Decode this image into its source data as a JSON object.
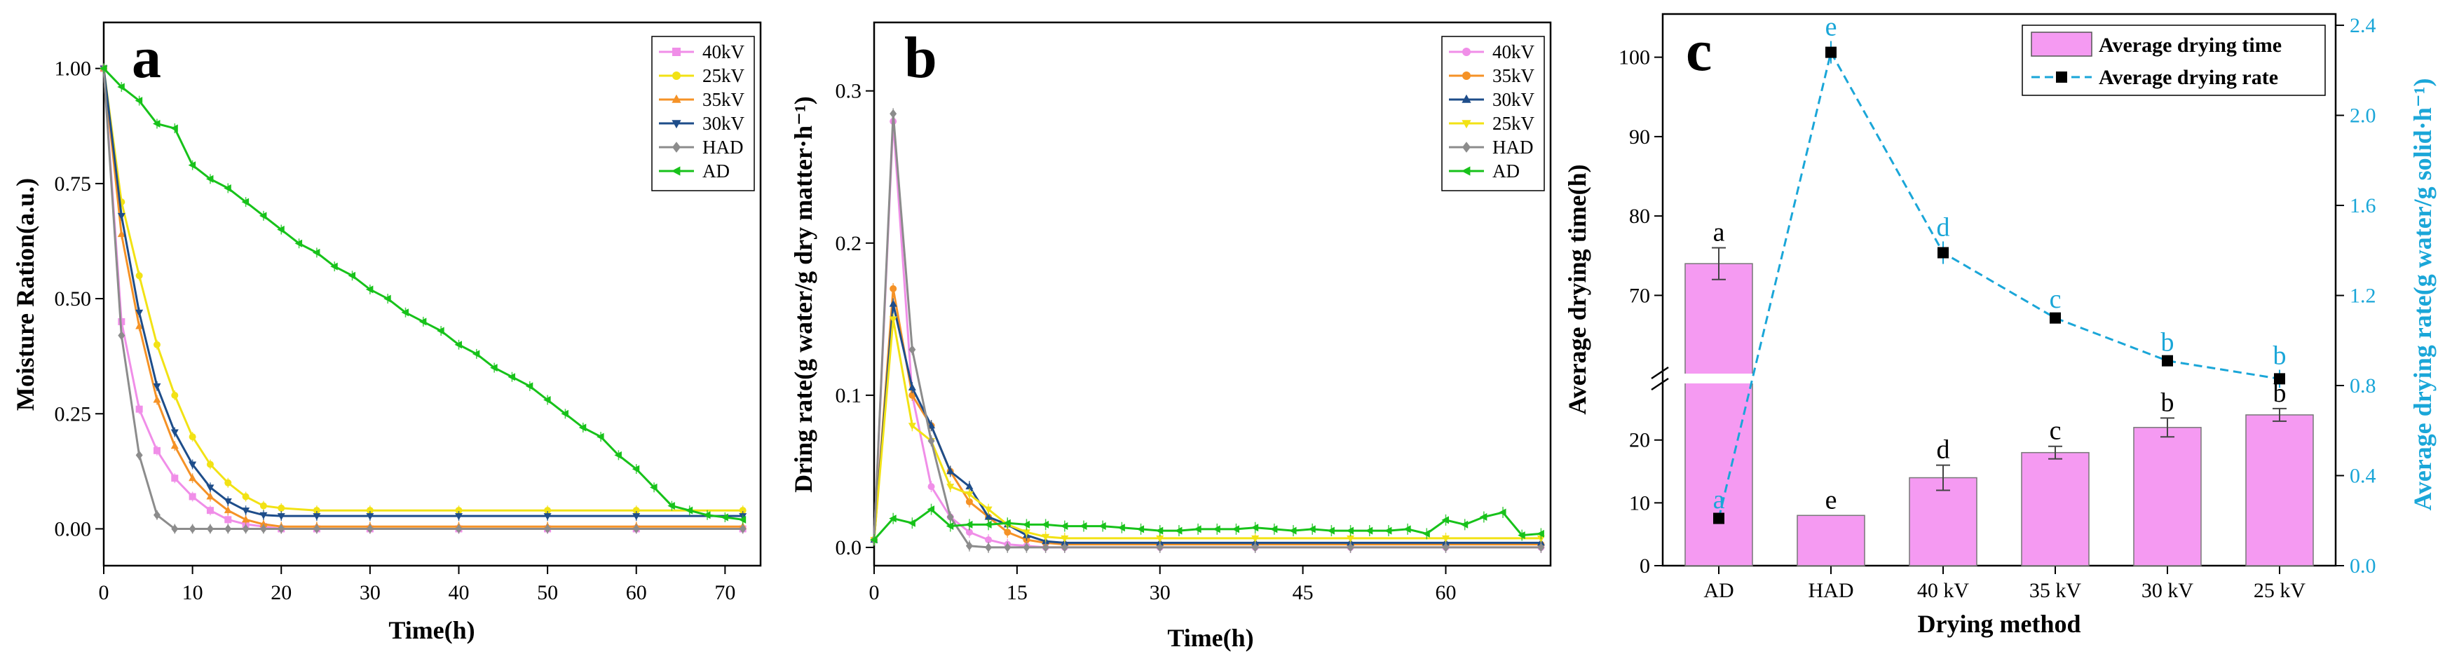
{
  "chart_data": [
    {
      "type": "line",
      "panel": "a",
      "xlabel": "Time(h)",
      "ylabel": "Moisture Ration(a.u.)",
      "xlim": [
        0,
        74
      ],
      "ylim": [
        -0.08,
        1.1
      ],
      "xticks": [
        0,
        10,
        20,
        30,
        40,
        50,
        60,
        70
      ],
      "yticks": [
        0.0,
        0.25,
        0.5,
        0.75,
        1.0
      ],
      "ytick_labels": [
        "0.00",
        "0.25",
        "0.50",
        "0.75",
        "1.00"
      ],
      "legend": [
        "40kV",
        "25kV",
        "35kV",
        "30kV",
        "HAD",
        "AD"
      ],
      "legend_position": "top-right",
      "series": [
        {
          "name": "40kV",
          "color": "#f08ee8",
          "marker": "square",
          "x": [
            0,
            2,
            4,
            6,
            8,
            10,
            12,
            14,
            16,
            18,
            20,
            24,
            30,
            40,
            50,
            60,
            72
          ],
          "y": [
            1.0,
            0.45,
            0.26,
            0.17,
            0.11,
            0.07,
            0.04,
            0.02,
            0.01,
            0.005,
            0.0,
            0.0,
            0.0,
            0.0,
            0.0,
            0.0,
            0.0
          ]
        },
        {
          "name": "25kV",
          "color": "#f2e214",
          "marker": "circle",
          "x": [
            0,
            2,
            4,
            6,
            8,
            10,
            12,
            14,
            16,
            18,
            20,
            24,
            30,
            40,
            50,
            60,
            72
          ],
          "y": [
            1.0,
            0.71,
            0.55,
            0.4,
            0.29,
            0.2,
            0.14,
            0.1,
            0.07,
            0.05,
            0.045,
            0.04,
            0.04,
            0.04,
            0.04,
            0.04,
            0.04
          ]
        },
        {
          "name": "35kV",
          "color": "#f59226",
          "marker": "triangle-up",
          "x": [
            0,
            2,
            4,
            6,
            8,
            10,
            12,
            14,
            16,
            18,
            20,
            24,
            30,
            40,
            50,
            60,
            72
          ],
          "y": [
            1.0,
            0.64,
            0.44,
            0.28,
            0.18,
            0.11,
            0.07,
            0.04,
            0.02,
            0.01,
            0.005,
            0.005,
            0.005,
            0.005,
            0.005,
            0.005,
            0.005
          ]
        },
        {
          "name": "30kV",
          "color": "#1e4d8a",
          "marker": "triangle-down",
          "x": [
            0,
            2,
            4,
            6,
            8,
            10,
            12,
            14,
            16,
            18,
            20,
            24,
            30,
            40,
            50,
            60,
            72
          ],
          "y": [
            1.0,
            0.68,
            0.47,
            0.31,
            0.21,
            0.14,
            0.09,
            0.06,
            0.04,
            0.03,
            0.028,
            0.028,
            0.028,
            0.028,
            0.028,
            0.028,
            0.028
          ]
        },
        {
          "name": "HAD",
          "color": "#8c8c8c",
          "marker": "diamond",
          "x": [
            0,
            2,
            4,
            6,
            8,
            10,
            12,
            14,
            16,
            18,
            20,
            24,
            30,
            40,
            50,
            60,
            72
          ],
          "y": [
            1.0,
            0.42,
            0.16,
            0.03,
            0.0,
            0.0,
            0.0,
            0.0,
            0.0,
            0.0,
            0.0,
            0.0,
            0.0,
            0.0,
            0.0,
            0.0,
            0.0
          ]
        },
        {
          "name": "AD",
          "color": "#17c21a",
          "marker": "left-triangle",
          "x": [
            0,
            2,
            4,
            6,
            8,
            10,
            12,
            14,
            16,
            18,
            20,
            22,
            24,
            26,
            28,
            30,
            32,
            34,
            36,
            38,
            40,
            42,
            44,
            46,
            48,
            50,
            52,
            54,
            56,
            58,
            60,
            62,
            64,
            66,
            68,
            70,
            72
          ],
          "y": [
            1.0,
            0.96,
            0.93,
            0.88,
            0.87,
            0.79,
            0.76,
            0.74,
            0.71,
            0.68,
            0.65,
            0.62,
            0.6,
            0.57,
            0.55,
            0.52,
            0.5,
            0.47,
            0.45,
            0.43,
            0.4,
            0.38,
            0.35,
            0.33,
            0.31,
            0.28,
            0.25,
            0.22,
            0.2,
            0.16,
            0.13,
            0.09,
            0.05,
            0.04,
            0.03,
            0.025,
            0.02
          ]
        }
      ]
    },
    {
      "type": "line",
      "panel": "b",
      "xlabel": "Time(h)",
      "ylabel": "Dring rate(g water/g dry matter·h⁻¹)",
      "xlim": [
        0,
        71
      ],
      "ylim": [
        -0.012,
        0.345
      ],
      "xticks": [
        0,
        15,
        30,
        45,
        60
      ],
      "yticks": [
        0.0,
        0.1,
        0.2,
        0.3
      ],
      "ytick_labels": [
        "0.0",
        "0.1",
        "0.2",
        "0.3"
      ],
      "legend": [
        "40kV",
        "35kV",
        "30kV",
        "25kV",
        "HAD",
        "AD"
      ],
      "legend_position": "top-right",
      "series": [
        {
          "name": "40kV",
          "color": "#f08ee8",
          "marker": "circle",
          "x": [
            0,
            2,
            4,
            6,
            8,
            10,
            12,
            14,
            16,
            18,
            20,
            30,
            40,
            50,
            60,
            70
          ],
          "y": [
            0.005,
            0.28,
            0.1,
            0.04,
            0.02,
            0.01,
            0.005,
            0.002,
            0.001,
            0.0,
            0.0,
            0.0,
            0.0,
            0.0,
            0.0,
            0.0
          ]
        },
        {
          "name": "35kV",
          "color": "#f59226",
          "marker": "circle",
          "x": [
            0,
            2,
            4,
            6,
            8,
            10,
            12,
            14,
            16,
            18,
            20,
            30,
            40,
            50,
            60,
            70
          ],
          "y": [
            0.005,
            0.17,
            0.1,
            0.08,
            0.05,
            0.03,
            0.02,
            0.01,
            0.005,
            0.003,
            0.002,
            0.002,
            0.002,
            0.002,
            0.002,
            0.002
          ]
        },
        {
          "name": "30kV",
          "color": "#1e4d8a",
          "marker": "triangle-up",
          "x": [
            0,
            2,
            4,
            6,
            8,
            10,
            12,
            14,
            16,
            18,
            20,
            30,
            40,
            50,
            60,
            70
          ],
          "y": [
            0.005,
            0.16,
            0.105,
            0.08,
            0.05,
            0.04,
            0.02,
            0.015,
            0.008,
            0.004,
            0.003,
            0.003,
            0.003,
            0.003,
            0.003,
            0.003
          ]
        },
        {
          "name": "25kV",
          "color": "#f2e214",
          "marker": "triangle-down",
          "x": [
            0,
            2,
            4,
            6,
            8,
            10,
            12,
            14,
            16,
            18,
            20,
            30,
            40,
            50,
            60,
            70
          ],
          "y": [
            0.005,
            0.15,
            0.08,
            0.07,
            0.04,
            0.035,
            0.025,
            0.015,
            0.01,
            0.007,
            0.006,
            0.006,
            0.006,
            0.006,
            0.006,
            0.006
          ]
        },
        {
          "name": "HAD",
          "color": "#8c8c8c",
          "marker": "diamond",
          "x": [
            0,
            2,
            4,
            6,
            8,
            10,
            12,
            14,
            16,
            18,
            20,
            30,
            40,
            50,
            60,
            70
          ],
          "y": [
            0.005,
            0.285,
            0.13,
            0.07,
            0.02,
            0.001,
            0.0,
            0.0,
            0.0,
            0.0,
            0.0,
            0.0,
            0.0,
            0.0,
            0.0,
            0.0
          ]
        },
        {
          "name": "AD",
          "color": "#17c21a",
          "marker": "left-triangle",
          "x": [
            0,
            2,
            4,
            6,
            8,
            10,
            12,
            14,
            16,
            18,
            20,
            22,
            24,
            26,
            28,
            30,
            32,
            34,
            36,
            38,
            40,
            42,
            44,
            46,
            48,
            50,
            52,
            54,
            56,
            58,
            60,
            62,
            64,
            66,
            68,
            70
          ],
          "y": [
            0.005,
            0.019,
            0.016,
            0.025,
            0.014,
            0.015,
            0.015,
            0.016,
            0.015,
            0.015,
            0.014,
            0.014,
            0.014,
            0.013,
            0.012,
            0.011,
            0.011,
            0.012,
            0.012,
            0.012,
            0.013,
            0.012,
            0.011,
            0.012,
            0.011,
            0.011,
            0.011,
            0.011,
            0.012,
            0.009,
            0.018,
            0.015,
            0.02,
            0.023,
            0.008,
            0.009
          ]
        }
      ]
    },
    {
      "type": "bar",
      "panel": "c",
      "xlabel": "Drying method",
      "ylabel": "Average drying time(h)",
      "ylabel_right": "Average drying rate(g water/g solid·h⁻¹)",
      "categories": [
        "AD",
        "HAD",
        "40 kV",
        "35 kV",
        "30 kV",
        "25 kV"
      ],
      "legend": [
        "Average drying time",
        "Average drying rate"
      ],
      "legend_position": "top-right",
      "left_axis_break": [
        27,
        62
      ],
      "yticks_left": [
        0,
        10,
        20,
        70,
        80,
        90,
        100
      ],
      "yticks_right": [
        0.0,
        0.4,
        0.8,
        1.2,
        1.6,
        2.0,
        2.4
      ],
      "yticks_right_labels": [
        "0.0",
        "0.4",
        "0.8",
        "1.2",
        "1.6",
        "2.0",
        "2.4"
      ],
      "ylim_right": [
        0,
        2.45
      ],
      "bar_color": "#f59af2",
      "line_color": "#1aa6d8",
      "series": [
        {
          "name": "Average drying time",
          "axis": "left",
          "values": [
            74,
            8,
            14,
            18,
            22,
            24
          ],
          "errors": [
            2,
            0,
            2,
            1,
            1.5,
            1
          ],
          "letters": [
            "a",
            "e",
            "d",
            "c",
            "b",
            "b"
          ]
        },
        {
          "name": "Average drying rate",
          "axis": "right",
          "values": [
            0.21,
            2.28,
            1.39,
            1.1,
            0.91,
            0.83
          ],
          "errors": [
            0.02,
            0.05,
            0.05,
            0.02,
            0.02,
            0.04
          ],
          "letters": [
            "a",
            "e",
            "d",
            "c",
            "b",
            "b"
          ]
        }
      ]
    }
  ]
}
